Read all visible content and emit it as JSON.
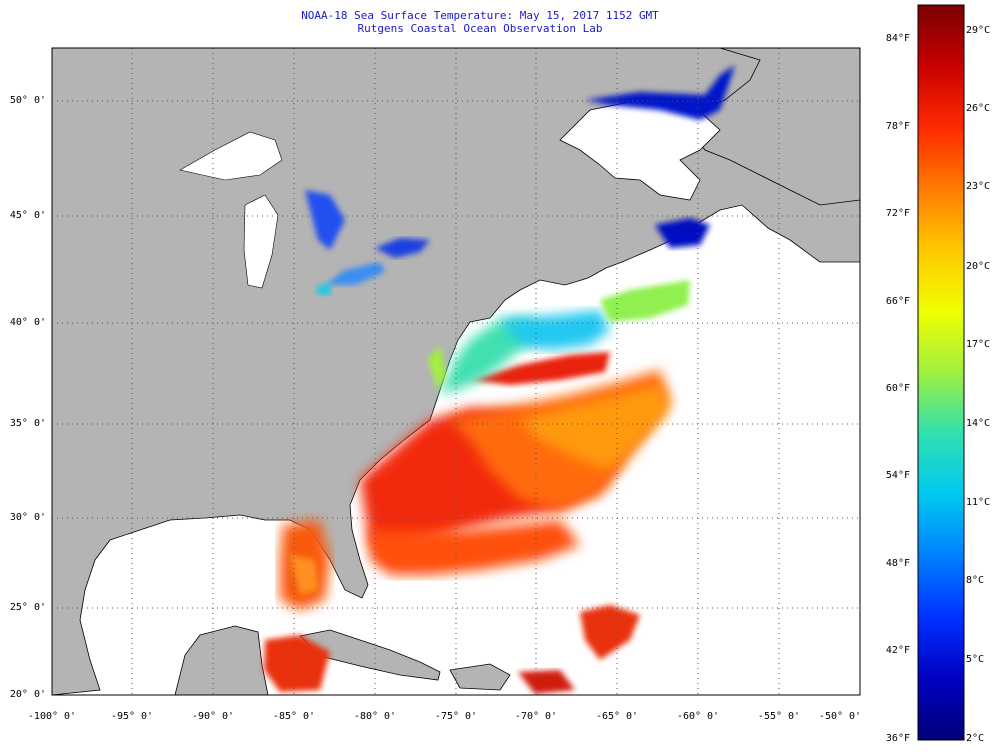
{
  "header": {
    "title": "NOAA-18 Sea Surface Temperature:  May 15, 2017 1152 GMT",
    "subtitle": "Rutgens Coastal Ocean Observation Lab"
  },
  "axes": {
    "lat_labels": [
      "50° 0'",
      "45° 0'",
      "40° 0'",
      "35° 0'",
      "30° 0'",
      "25° 0'",
      "20° 0'"
    ],
    "lon_labels": [
      "-100° 0'",
      "-95° 0'",
      "-90° 0'",
      "-85° 0'",
      "-80° 0'",
      "-75° 0'",
      "-70° 0'",
      "-65° 0'",
      "-60° 0'",
      "-55° 0'",
      "-50° 0'"
    ]
  },
  "colorbar": {
    "fahrenheit_labels": [
      "84°F",
      "78°F",
      "72°F",
      "66°F",
      "60°F",
      "54°F",
      "48°F",
      "42°F",
      "36°F"
    ],
    "celsius_labels": [
      "29°C",
      "26°C",
      "23°C",
      "20°C",
      "17°C",
      "14°C",
      "11°C",
      "8°C",
      "5°C",
      "2°C"
    ],
    "colors_top_to_bottom": [
      "#7a0000",
      "#c80000",
      "#ff2a00",
      "#ff7a00",
      "#ffc800",
      "#f0ff00",
      "#a0f040",
      "#30e0b0",
      "#00c8f0",
      "#0080ff",
      "#0030ff",
      "#0000c0",
      "#00007a"
    ]
  },
  "map": {
    "land_color": "#b4b4b4",
    "no_data_color": "#ffffff",
    "grid": "dotted"
  }
}
